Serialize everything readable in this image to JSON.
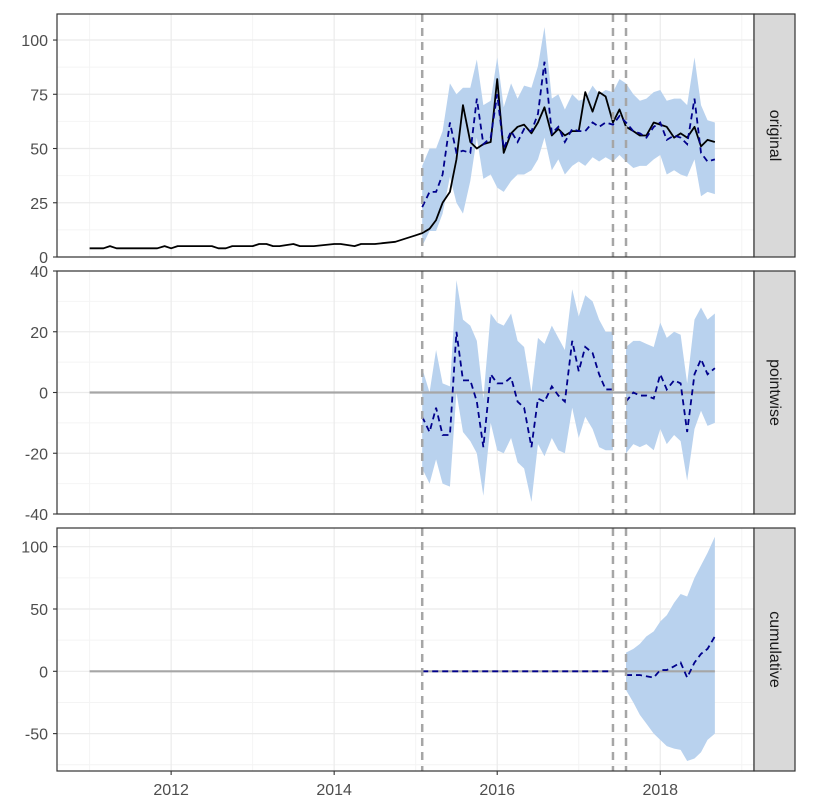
{
  "chart_data": {
    "type": "line",
    "layout": "faceted-time-series",
    "x_range": [
      2010.6,
      2019.15
    ],
    "x_ticks": [
      {
        "value": 2012,
        "label": "2012"
      },
      {
        "value": 2014,
        "label": "2014"
      },
      {
        "value": 2016,
        "label": "2016"
      },
      {
        "value": 2018,
        "label": "2018"
      }
    ],
    "event_lines": [
      2015.08,
      2017.42,
      2017.58
    ],
    "colors": {
      "actual": "#000000",
      "predicted": "#00008b",
      "ribbon": "#b9d2ee",
      "zero_line": "#a6a6a6",
      "event_line": "#a6a6a6",
      "grid_major": "#ebebeb",
      "grid_minor": "#f4f4f4",
      "strip_fill": "#d9d9d9",
      "panel_border": "#333333"
    },
    "panels": [
      {
        "strip": "original",
        "ylim": [
          0,
          112
        ],
        "y_ticks": [
          {
            "value": 0,
            "label": "0"
          },
          {
            "value": 25,
            "label": "25"
          },
          {
            "value": 50,
            "label": "50"
          },
          {
            "value": 75,
            "label": "75"
          },
          {
            "value": 100,
            "label": "100"
          }
        ],
        "series": [
          {
            "role": "actual",
            "x": [
              2011.0,
              2011.17,
              2011.25,
              2011.33,
              2011.5,
              2011.75,
              2011.83,
              2011.92,
              2012.0,
              2012.08,
              2012.25,
              2012.5,
              2012.58,
              2012.67,
              2012.75,
              2013.0,
              2013.08,
              2013.17,
              2013.25,
              2013.33,
              2013.5,
              2013.58,
              2013.67,
              2013.75,
              2014.0,
              2014.08,
              2014.25,
              2014.33,
              2014.5,
              2014.75,
              2015.0,
              2015.08,
              2015.17,
              2015.25,
              2015.33,
              2015.42,
              2015.5,
              2015.58,
              2015.67,
              2015.75,
              2015.83,
              2015.92,
              2016.0,
              2016.08,
              2016.17,
              2016.25,
              2016.33,
              2016.42,
              2016.5,
              2016.58,
              2016.67,
              2016.75,
              2016.83,
              2016.92,
              2017.0,
              2017.08,
              2017.17,
              2017.25,
              2017.33,
              2017.42,
              2017.5,
              2017.58,
              2017.67,
              2017.75,
              2017.83,
              2017.92,
              2018.0,
              2018.08,
              2018.17,
              2018.25,
              2018.33,
              2018.42,
              2018.5,
              2018.58,
              2018.67
            ],
            "y": [
              4,
              4,
              5,
              4,
              4,
              4,
              4,
              5,
              4,
              5,
              5,
              5,
              4,
              4,
              5,
              5,
              6,
              6,
              5,
              5,
              6,
              5,
              5,
              5,
              6,
              6,
              5,
              6,
              6,
              7,
              10,
              11,
              13,
              17,
              25,
              30,
              45,
              70,
              53,
              50,
              52,
              53,
              82,
              48,
              57,
              60,
              61,
              57,
              62,
              69,
              56,
              59,
              56,
              58,
              58,
              76,
              67,
              76,
              74,
              62,
              68,
              60,
              58,
              56,
              56,
              62,
              61,
              60,
              55,
              57,
              55,
              60,
              51,
              54,
              53
            ],
            "name": ""
          },
          {
            "role": "predicted",
            "x": [
              2015.08,
              2015.17,
              2015.25,
              2015.33,
              2015.42,
              2015.5,
              2015.58,
              2015.67,
              2015.75,
              2015.83,
              2015.92,
              2016.0,
              2016.08,
              2016.17,
              2016.25,
              2016.33,
              2016.42,
              2016.5,
              2016.58,
              2016.67,
              2016.75,
              2016.83,
              2016.92,
              2017.0,
              2017.08,
              2017.17,
              2017.25,
              2017.33,
              2017.42,
              2017.5,
              2017.58,
              2017.67,
              2017.75,
              2017.83,
              2017.92,
              2018.0,
              2018.08,
              2018.17,
              2018.25,
              2018.33,
              2018.42,
              2018.5,
              2018.58,
              2018.67
            ],
            "y": [
              23,
              30,
              30,
              38,
              62,
              48,
              49,
              48,
              73,
              52,
              55,
              75,
              50,
              58,
              53,
              59,
              58,
              66,
              90,
              57,
              60,
              53,
              59,
              58,
              58,
              62,
              60,
              62,
              61,
              65,
              62,
              58,
              57,
              55,
              60,
              62,
              54,
              56,
              55,
              52,
              73,
              48,
              44,
              45
            ],
            "name": ""
          },
          {
            "role": "ribbon",
            "x": [
              2015.08,
              2015.17,
              2015.25,
              2015.33,
              2015.42,
              2015.5,
              2015.58,
              2015.67,
              2015.75,
              2015.83,
              2015.92,
              2016.0,
              2016.08,
              2016.17,
              2016.25,
              2016.33,
              2016.42,
              2016.5,
              2016.58,
              2016.67,
              2016.75,
              2016.83,
              2016.92,
              2017.0,
              2017.08,
              2017.17,
              2017.25,
              2017.33,
              2017.42,
              2017.5,
              2017.58,
              2017.67,
              2017.75,
              2017.83,
              2017.92,
              2018.0,
              2018.08,
              2018.17,
              2018.25,
              2018.33,
              2018.42,
              2018.5,
              2018.58,
              2018.67
            ],
            "lower": [
              5,
              12,
              12,
              20,
              37,
              25,
              20,
              35,
              55,
              36,
              38,
              32,
              30,
              35,
              38,
              38,
              40,
              45,
              55,
              40,
              45,
              38,
              42,
              44,
              42,
              46,
              44,
              46,
              44,
              47,
              44,
              41,
              42,
              42,
              45,
              47,
              38,
              40,
              38,
              37,
              45,
              28,
              30,
              29
            ],
            "upper": [
              42,
              50,
              50,
              58,
              80,
              75,
              78,
              78,
              91,
              70,
              72,
              92,
              69,
              80,
              73,
              79,
              78,
              88,
              106,
              73,
              75,
              68,
              75,
              72,
              73,
              79,
              75,
              77,
              76,
              82,
              80,
              75,
              72,
              73,
              76,
              77,
              72,
              73,
              73,
              70,
              92,
              70,
              63,
              62
            ]
          }
        ]
      },
      {
        "strip": "pointwise",
        "ylim": [
          -40,
          40
        ],
        "y_ticks": [
          {
            "value": -40,
            "label": "-40"
          },
          {
            "value": -20,
            "label": "-20"
          },
          {
            "value": 0,
            "label": "0"
          },
          {
            "value": 20,
            "label": "20"
          },
          {
            "value": 40,
            "label": "40"
          }
        ],
        "zero_line": {
          "x": [
            2011.0,
            2018.67
          ],
          "y": 0
        },
        "series": [
          {
            "role": "predicted",
            "segments": [
              {
                "x": [
                  2015.08,
                  2015.17,
                  2015.25,
                  2015.33,
                  2015.42,
                  2015.5,
                  2015.58,
                  2015.67,
                  2015.75,
                  2015.83,
                  2015.92,
                  2016.0,
                  2016.08,
                  2016.17,
                  2016.25,
                  2016.33,
                  2016.42,
                  2016.5,
                  2016.58,
                  2016.67,
                  2016.75,
                  2016.83,
                  2016.92,
                  2017.0,
                  2017.08,
                  2017.17,
                  2017.25,
                  2017.33,
                  2017.42
                ],
                "y": [
                  -8,
                  -13,
                  -5,
                  -14,
                  -14,
                  20,
                  4,
                  4,
                  -3,
                  -18,
                  6,
                  3,
                  3,
                  5,
                  -3,
                  -5,
                  -18,
                  -2,
                  -3,
                  2,
                  -1,
                  -3,
                  17,
                  7,
                  15,
                  13,
                  6,
                  1,
                  1
                ]
              },
              {
                "x": [
                  2017.58,
                  2017.67,
                  2017.75,
                  2017.83,
                  2017.92,
                  2018.0,
                  2018.08,
                  2018.17,
                  2018.25,
                  2018.33,
                  2018.42,
                  2018.5,
                  2018.58,
                  2018.67
                ],
                "y": [
                  -3,
                  0,
                  -1,
                  -1,
                  -2,
                  6,
                  1,
                  4,
                  3,
                  -13,
                  6,
                  11,
                  6,
                  8
                ]
              }
            ],
            "name": ""
          },
          {
            "role": "ribbon",
            "segments": [
              {
                "x": [
                  2015.08,
                  2015.17,
                  2015.25,
                  2015.33,
                  2015.42,
                  2015.5,
                  2015.58,
                  2015.67,
                  2015.75,
                  2015.83,
                  2015.92,
                  2016.0,
                  2016.08,
                  2016.17,
                  2016.25,
                  2016.33,
                  2016.42,
                  2016.5,
                  2016.58,
                  2016.67,
                  2016.75,
                  2016.83,
                  2016.92,
                  2017.0,
                  2017.08,
                  2017.17,
                  2017.25,
                  2017.33,
                  2017.42
                ],
                "lower": [
                  -25,
                  -30,
                  -22,
                  -30,
                  -31,
                  0,
                  -13,
                  -16,
                  -20,
                  -34,
                  -10,
                  -19,
                  -20,
                  -15,
                  -23,
                  -25,
                  -36,
                  -17,
                  -21,
                  -15,
                  -19,
                  -20,
                  -5,
                  -15,
                  -8,
                  -12,
                  -18,
                  -19,
                  -19
                ],
                "upper": [
                  8,
                  0,
                  14,
                  3,
                  2,
                  37,
                  24,
                  22,
                  17,
                  -2,
                  26,
                  23,
                  22,
                  26,
                  17,
                  15,
                  0,
                  18,
                  16,
                  22,
                  18,
                  14,
                  34,
                  25,
                  32,
                  30,
                  24,
                  20,
                  20
                ]
              },
              {
                "x": [
                  2017.58,
                  2017.67,
                  2017.75,
                  2017.83,
                  2017.92,
                  2018.0,
                  2018.08,
                  2018.17,
                  2018.25,
                  2018.33,
                  2018.42,
                  2018.5,
                  2018.58,
                  2018.67
                ],
                "lower": [
                  -20,
                  -17,
                  -18,
                  -17,
                  -19,
                  -12,
                  -17,
                  -14,
                  -16,
                  -29,
                  -12,
                  -6,
                  -11,
                  -10
                ],
                "upper": [
                  15,
                  17,
                  17,
                  16,
                  15,
                  23,
                  18,
                  20,
                  19,
                  3,
                  24,
                  28,
                  24,
                  26
                ]
              }
            ]
          }
        ]
      },
      {
        "strip": "cumulative",
        "ylim": [
          -80,
          115
        ],
        "y_ticks": [
          {
            "value": -50,
            "label": "-50"
          },
          {
            "value": 0,
            "label": "0"
          },
          {
            "value": 50,
            "label": "50"
          },
          {
            "value": 100,
            "label": "100"
          }
        ],
        "zero_line": {
          "x": [
            2011.0,
            2018.67
          ],
          "y": 0
        },
        "series": [
          {
            "role": "predicted",
            "segments": [
              {
                "x": [
                  2015.08,
                  2017.42
                ],
                "y": [
                  0,
                  0
                ]
              },
              {
                "x": [
                  2017.58,
                  2017.67,
                  2017.75,
                  2017.83,
                  2017.92,
                  2018.0,
                  2018.08,
                  2018.17,
                  2018.25,
                  2018.33,
                  2018.42,
                  2018.5,
                  2018.58,
                  2018.67
                ],
                "y": [
                  -3,
                  -3,
                  -3,
                  -4,
                  -5,
                  1,
                  1,
                  4,
                  7,
                  -5,
                  7,
                  14,
                  18,
                  28
                ]
              }
            ],
            "name": ""
          },
          {
            "role": "ribbon",
            "segments": [
              {
                "x": [
                  2017.58,
                  2017.67,
                  2017.75,
                  2017.83,
                  2017.92,
                  2018.0,
                  2018.08,
                  2018.17,
                  2018.25,
                  2018.33,
                  2018.42,
                  2018.5,
                  2018.58,
                  2018.67
                ],
                "lower": [
                  -15,
                  -25,
                  -35,
                  -42,
                  -50,
                  -55,
                  -60,
                  -62,
                  -63,
                  -72,
                  -70,
                  -65,
                  -55,
                  -50
                ],
                "upper": [
                  15,
                  18,
                  22,
                  28,
                  32,
                  40,
                  45,
                  55,
                  62,
                  60,
                  75,
                  85,
                  95,
                  108
                ]
              }
            ]
          }
        ]
      }
    ]
  }
}
